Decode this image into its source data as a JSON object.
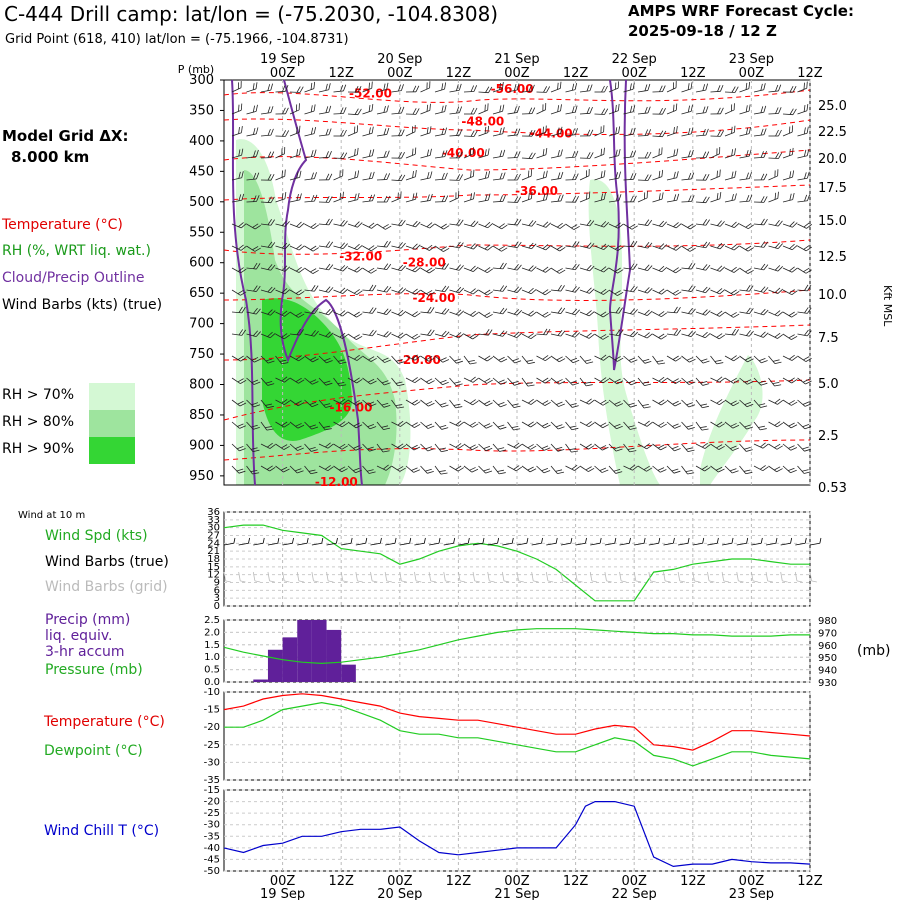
{
  "header": {
    "title": "C-444 Drill camp:  lat/lon = (-75.2030, -104.8308)",
    "subtitle": "Grid Point (618, 410) lat/lon = (-75.1966, -104.8731)",
    "cycle_label": "AMPS WRF Forecast Cycle:",
    "cycle_value": "2025-09-18 / 12  Z"
  },
  "model": {
    "grid_label": "Model Grid ΔX:",
    "grid_value": "8.000 km"
  },
  "legend": {
    "temperature": "Temperature (°C)",
    "rh": "RH (%, WRT liq. wat.)",
    "cloud": "Cloud/Precip Outline",
    "wind": "Wind Barbs (kts) (true)",
    "rh70": "RH > 70%",
    "rh80": "RH > 80%",
    "rh90": "RH > 90%"
  },
  "colors": {
    "rh70": "#d4f8d4",
    "rh80": "#9ee49e",
    "rh90": "#34d634",
    "temperature": "#ff0000",
    "cloud": "#7030a0",
    "wind_speed": "#22cc22",
    "wind_barbs": "#000000",
    "grid_barbs": "#bbbbbb",
    "precip": "#60209a",
    "pressure": "#22cc22",
    "dewpoint": "#22cc22",
    "wind_chill": "#0000cc"
  },
  "time_axis": {
    "hour_ticks": [
      "00Z",
      "12Z",
      "00Z",
      "12Z",
      "00Z",
      "12Z",
      "00Z",
      "12Z",
      "00Z",
      "12Z"
    ],
    "hour_tick_values": [
      12,
      24,
      36,
      48,
      60,
      72,
      84,
      96,
      108,
      120
    ],
    "days": [
      "19 Sep",
      "20 Sep",
      "21 Sep",
      "22 Sep",
      "23 Sep"
    ],
    "day_values": [
      12,
      36,
      60,
      84,
      108
    ]
  },
  "chart_data": [
    {
      "id": "cross-section",
      "type": "heatmap",
      "ylabel_left": "P (mb)",
      "ylabel_right": "Kft MSL",
      "pressure_levels": [
        "300",
        "350",
        "400",
        "450",
        "500",
        "550",
        "600",
        "650",
        "700",
        "750",
        "800",
        "850",
        "900",
        "950"
      ],
      "height_labels": [
        "25.0",
        "22.5",
        "20.0",
        "17.5",
        "15.0",
        "12.5",
        "10.0",
        "7.5",
        "5.0",
        "2.5",
        "0.53"
      ],
      "temperature_labels": [
        {
          "text": "-52.00",
          "t": 30,
          "p": 322
        },
        {
          "text": "-56.00",
          "t": 59,
          "p": 315
        },
        {
          "text": "-48.00",
          "t": 53,
          "p": 368
        },
        {
          "text": "-44.00",
          "t": 67,
          "p": 388
        },
        {
          "text": "-40.00",
          "t": 49,
          "p": 420
        },
        {
          "text": "-36.00",
          "t": 64,
          "p": 482
        },
        {
          "text": "-32.00",
          "t": 28,
          "p": 590
        },
        {
          "text": "-28.00",
          "t": 41,
          "p": 600
        },
        {
          "text": "-24.00",
          "t": 43,
          "p": 658
        },
        {
          "text": "-20.00",
          "t": 40,
          "p": 760
        },
        {
          "text": "-16.00",
          "t": 26,
          "p": 838
        },
        {
          "text": "-12.00",
          "t": 23,
          "p": 960
        }
      ]
    },
    {
      "id": "wind-10m",
      "type": "line",
      "panel_label": "Wind at 10 m",
      "labels": [
        "Wind Spd (kts)",
        "Wind Barbs (true)",
        "Wind Barbs (grid)"
      ],
      "yticks": [
        "36",
        "33",
        "30",
        "27",
        "24",
        "21",
        "18",
        "15",
        "12",
        "9",
        "6",
        "3",
        "0"
      ],
      "ylim": [
        0,
        36
      ],
      "series": [
        {
          "name": "Wind Spd (kts)",
          "x": [
            0,
            4,
            8,
            12,
            16,
            20,
            24,
            28,
            32,
            36,
            40,
            44,
            48,
            52,
            56,
            60,
            64,
            68,
            72,
            76,
            80,
            84,
            88,
            92,
            96,
            100,
            104,
            108,
            112,
            116,
            120
          ],
          "y": [
            30,
            31,
            31,
            29,
            28,
            27,
            22,
            21,
            20,
            16,
            18,
            21,
            23,
            24,
            23,
            21,
            18,
            14,
            8,
            2,
            2,
            2,
            13,
            14,
            16,
            17,
            18,
            18,
            17,
            16,
            16
          ]
        }
      ]
    },
    {
      "id": "precip-pressure",
      "type": "bar",
      "labels": [
        "Precip (mm)",
        "liq. equiv.",
        "3-hr accum",
        "Pressure (mb)"
      ],
      "yticks_left": [
        "2.5",
        "2.0",
        "1.5",
        "1.0",
        "0.5",
        "0.0"
      ],
      "yticks_right": [
        "980",
        "970",
        "960",
        "950",
        "940",
        "930"
      ],
      "unit_right": "(mb)",
      "series": [
        {
          "name": "Precip (mm)",
          "x": [
            6,
            9,
            12,
            15,
            18,
            21,
            24,
            27
          ],
          "y": [
            0.1,
            1.3,
            1.8,
            2.5,
            2.5,
            2.1,
            0.7,
            0
          ]
        },
        {
          "name": "Pressure (mb)",
          "x": [
            0,
            4,
            8,
            12,
            16,
            20,
            24,
            28,
            32,
            36,
            40,
            44,
            48,
            52,
            56,
            60,
            64,
            68,
            72,
            76,
            80,
            84,
            88,
            92,
            96,
            100,
            104,
            108,
            112,
            116,
            120
          ],
          "y": [
            958,
            954,
            951,
            948,
            946,
            945,
            946,
            948,
            950,
            953,
            956,
            960,
            964,
            967,
            970,
            972,
            973,
            973,
            973,
            972,
            971,
            970,
            969,
            969,
            968,
            968,
            967,
            967,
            967,
            968,
            968
          ]
        }
      ]
    },
    {
      "id": "temperature-dewpoint",
      "type": "line",
      "labels": [
        "Temperature (°C)",
        "Dewpoint (°C)"
      ],
      "yticks": [
        "-10",
        "-15",
        "-20",
        "-25",
        "-30",
        "-35"
      ],
      "ylim": [
        -35,
        -10
      ],
      "series": [
        {
          "name": "Temperature (°C)",
          "x": [
            0,
            4,
            8,
            12,
            16,
            20,
            24,
            28,
            32,
            36,
            40,
            44,
            48,
            52,
            56,
            60,
            64,
            68,
            72,
            76,
            80,
            84,
            88,
            92,
            96,
            100,
            104,
            108,
            112,
            116,
            120
          ],
          "y": [
            -15,
            -14,
            -12,
            -11,
            -10.5,
            -11,
            -12,
            -13,
            -14,
            -16,
            -17,
            -17.5,
            -18,
            -18,
            -19,
            -20,
            -21,
            -22,
            -22,
            -20.5,
            -19.5,
            -20,
            -25,
            -25.5,
            -26.5,
            -24,
            -21,
            -21,
            -21.5,
            -22,
            -22.5
          ]
        },
        {
          "name": "Dewpoint (°C)",
          "x": [
            0,
            4,
            8,
            12,
            16,
            20,
            24,
            28,
            32,
            36,
            40,
            44,
            48,
            52,
            56,
            60,
            64,
            68,
            72,
            76,
            80,
            84,
            88,
            92,
            96,
            100,
            104,
            108,
            112,
            116,
            120
          ],
          "y": [
            -20,
            -20,
            -18,
            -15,
            -14,
            -13,
            -14,
            -16,
            -18,
            -21,
            -22,
            -22,
            -23,
            -23,
            -24,
            -25,
            -26,
            -27,
            -27,
            -25,
            -23,
            -24,
            -28,
            -29,
            -31,
            -29,
            -27,
            -27,
            -28,
            -28.5,
            -29
          ]
        }
      ]
    },
    {
      "id": "wind-chill",
      "type": "line",
      "labels": [
        "Wind Chill T (°C)"
      ],
      "yticks": [
        "-15",
        "-20",
        "-25",
        "-30",
        "-35",
        "-40",
        "-45",
        "-50"
      ],
      "ylim": [
        -50,
        -15
      ],
      "series": [
        {
          "name": "Wind Chill T (°C)",
          "x": [
            0,
            4,
            8,
            12,
            16,
            20,
            24,
            28,
            32,
            36,
            40,
            44,
            48,
            52,
            56,
            60,
            64,
            68,
            72,
            74,
            76,
            80,
            84,
            88,
            92,
            96,
            100,
            104,
            108,
            112,
            116,
            120
          ],
          "y": [
            -40,
            -42,
            -39,
            -38,
            -35,
            -35,
            -33,
            -32,
            -32,
            -31,
            -37,
            -42,
            -43,
            -42,
            -41,
            -40,
            -40,
            -40,
            -30,
            -22,
            -20,
            -20,
            -22,
            -44,
            -48,
            -47,
            -47,
            -45,
            -46,
            -46.5,
            -46.5,
            -47
          ]
        }
      ]
    }
  ]
}
